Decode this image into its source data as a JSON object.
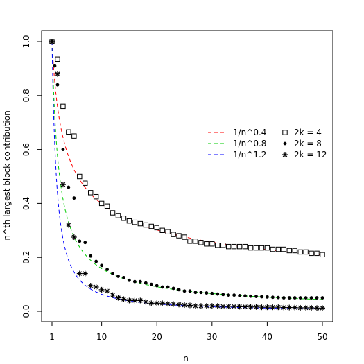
{
  "chart_data": {
    "type": "scatter",
    "xlabel": "n",
    "ylabel": "n^th largest block contribution",
    "xlim": [
      1,
      50
    ],
    "ylim": [
      0,
      1
    ],
    "x_ticks": [
      1,
      10,
      20,
      30,
      40,
      50
    ],
    "y_ticks": [
      "0.0",
      "0.2",
      "0.4",
      "0.6",
      "0.8",
      "1.0"
    ],
    "grid": false,
    "legend_placement": "right-middle",
    "curves": [
      {
        "name": "1/n^0.4",
        "exponent": 0.4,
        "color": "#ff0000",
        "style": "dashed"
      },
      {
        "name": "1/n^0.8",
        "exponent": 0.8,
        "color": "#00cc00",
        "style": "dashed"
      },
      {
        "name": "1/n^1.2",
        "exponent": 1.2,
        "color": "#0000ff",
        "style": "dashed"
      }
    ],
    "series": [
      {
        "name": "2k = 4",
        "marker": "open-square",
        "x": [
          1,
          2,
          3,
          4,
          5,
          6,
          7,
          8,
          9,
          10,
          11,
          12,
          13,
          14,
          15,
          16,
          17,
          18,
          19,
          20,
          21,
          22,
          23,
          24,
          25,
          26,
          27,
          28,
          29,
          30,
          31,
          32,
          33,
          34,
          35,
          36,
          37,
          38,
          39,
          40,
          41,
          42,
          43,
          44,
          45,
          46,
          47,
          48,
          49,
          50
        ],
        "values": [
          1.0,
          0.935,
          0.76,
          0.665,
          0.65,
          0.5,
          0.475,
          0.44,
          0.425,
          0.4,
          0.39,
          0.365,
          0.355,
          0.345,
          0.335,
          0.33,
          0.325,
          0.32,
          0.315,
          0.31,
          0.3,
          0.295,
          0.285,
          0.28,
          0.275,
          0.26,
          0.26,
          0.255,
          0.25,
          0.25,
          0.245,
          0.245,
          0.24,
          0.24,
          0.24,
          0.24,
          0.235,
          0.235,
          0.235,
          0.235,
          0.23,
          0.23,
          0.23,
          0.225,
          0.225,
          0.22,
          0.22,
          0.215,
          0.215,
          0.21
        ]
      },
      {
        "name": "2k = 8",
        "marker": "filled-circle",
        "x": [
          1,
          1.5,
          2,
          3,
          4,
          5,
          6,
          7,
          8,
          9,
          10,
          11,
          12,
          13,
          14,
          15,
          16,
          17,
          18,
          19,
          20,
          21,
          22,
          23,
          24,
          25,
          26,
          27,
          28,
          29,
          30,
          31,
          32,
          33,
          34,
          35,
          36,
          37,
          38,
          39,
          40,
          41,
          42,
          43,
          44,
          45,
          46,
          47,
          48,
          49,
          50
        ],
        "values": [
          1.0,
          0.91,
          0.84,
          0.6,
          0.46,
          0.42,
          0.26,
          0.255,
          0.205,
          0.185,
          0.17,
          0.155,
          0.14,
          0.13,
          0.125,
          0.115,
          0.11,
          0.11,
          0.105,
          0.1,
          0.095,
          0.09,
          0.09,
          0.085,
          0.08,
          0.075,
          0.075,
          0.07,
          0.07,
          0.068,
          0.066,
          0.064,
          0.062,
          0.06,
          0.06,
          0.058,
          0.057,
          0.056,
          0.055,
          0.054,
          0.053,
          0.052,
          0.051,
          0.05,
          0.05,
          0.05,
          0.05,
          0.05,
          0.05,
          0.05,
          0.05
        ]
      },
      {
        "name": "2k = 12",
        "marker": "asterisk",
        "x": [
          1,
          2,
          3,
          4,
          5,
          6,
          7,
          8,
          9,
          10,
          11,
          12,
          13,
          14,
          15,
          16,
          17,
          18,
          19,
          20,
          21,
          22,
          23,
          24,
          25,
          26,
          27,
          28,
          29,
          30,
          31,
          32,
          33,
          34,
          35,
          36,
          37,
          38,
          39,
          40,
          41,
          42,
          43,
          44,
          45,
          46,
          47,
          48,
          49,
          50
        ],
        "values": [
          1.0,
          0.88,
          0.47,
          0.32,
          0.275,
          0.14,
          0.14,
          0.095,
          0.09,
          0.08,
          0.075,
          0.06,
          0.05,
          0.045,
          0.04,
          0.04,
          0.04,
          0.035,
          0.03,
          0.03,
          0.03,
          0.028,
          0.027,
          0.025,
          0.023,
          0.022,
          0.02,
          0.02,
          0.02,
          0.02,
          0.02,
          0.018,
          0.018,
          0.018,
          0.017,
          0.017,
          0.016,
          0.016,
          0.015,
          0.015,
          0.015,
          0.015,
          0.014,
          0.014,
          0.014,
          0.013,
          0.013,
          0.013,
          0.012,
          0.012
        ]
      }
    ]
  }
}
